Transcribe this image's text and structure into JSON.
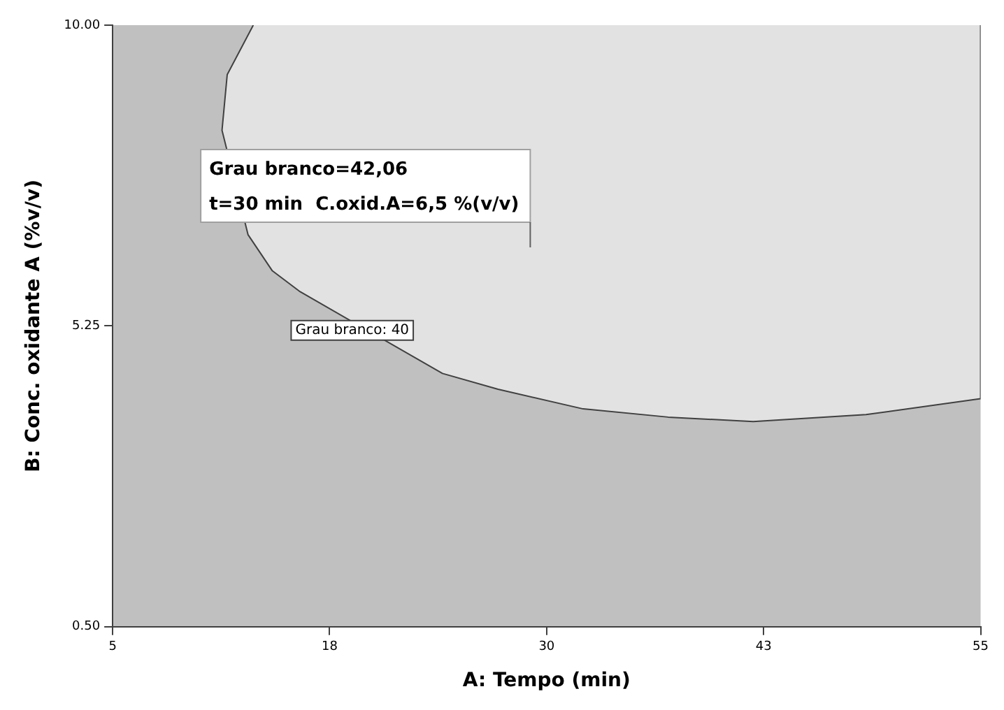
{
  "chart_data": {
    "type": "area",
    "xlabel": "A: Tempo (min)",
    "ylabel": "B: Conc. oxidante A (%v/v)",
    "xlim": [
      5,
      55
    ],
    "ylim": [
      0.5,
      10
    ],
    "xticks": [
      5,
      {
        "value": 17.5,
        "label": "18"
      },
      30,
      {
        "value": 42.5,
        "label": "43"
      },
      55
    ],
    "yticks": [
      {
        "value": 0.5,
        "label": "0.50"
      },
      {
        "value": 5.25,
        "label": "5.25"
      },
      {
        "value": 10,
        "label": "10.00"
      }
    ],
    "series": [
      {
        "color": "#e2e2e2",
        "x": [
          13.1,
          11.6,
          11.3,
          12.8,
          14.2,
          15.8,
          24,
          27.2,
          32.1,
          37.0,
          41.9,
          48.4,
          55,
          55
        ],
        "values": [
          10,
          9.22,
          8.34,
          6.69,
          6.12,
          5.79,
          4.5,
          4.25,
          3.94,
          3.81,
          3.74,
          3.85,
          4.1,
          10
        ]
      }
    ],
    "annotations": [
      "Grau branco=42,06\nt=30 min  C.oxid.A=6,5 %(v/v)",
      {
        "text": "Grau branco: 40",
        "x": 18.8,
        "y": 5.18
      }
    ]
  }
}
